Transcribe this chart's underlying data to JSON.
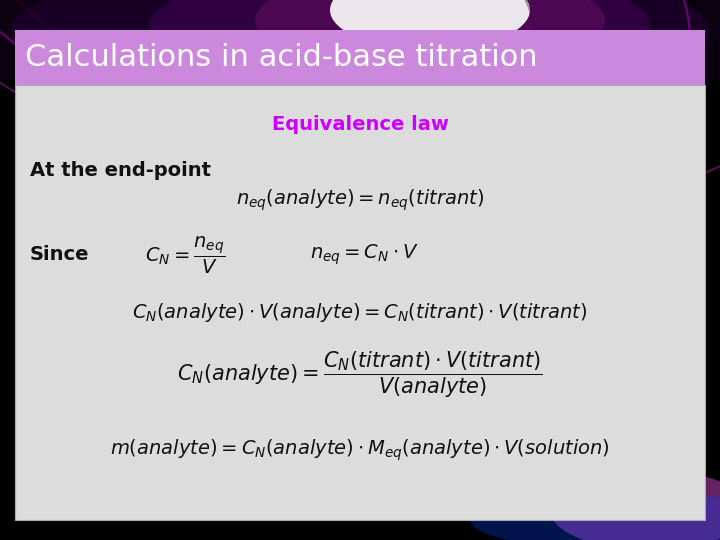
{
  "title": "Calculations in acid-base titration",
  "title_bg": "#cc88dd",
  "title_color": "#ffffff",
  "title_fontsize": 22,
  "content_bg": "#dcdcdc",
  "outer_bg": "#000000",
  "equivalence_label": "Equivalence law",
  "equivalence_color": "#cc00ff",
  "equivalence_fontsize": 14,
  "eq1_label": "At the end-point",
  "eq1_formula": "$n_{eq}(analyte) = n_{eq}(titrant)$",
  "eq2_label": "Since",
  "eq2a_formula": "$C_N = \\dfrac{n_{eq}}{V}$",
  "eq2b_formula": "$n_{eq} = C_N \\cdot V$",
  "eq3_formula": "$C_N(analyte) \\cdot V(analyte) = C_N(titrant) \\cdot V(titrant)$",
  "eq4_formula": "$C_N(analyte) = \\dfrac{C_N(titrant) \\cdot V(titrant)}{V(analyte)}$",
  "eq5_formula": "$m(analyte) = C_N(analyte) \\cdot M_{eq}(analyte) \\cdot V(solution)$",
  "formula_color": "#111111",
  "formula_fontsize": 14,
  "label_fontsize": 14
}
